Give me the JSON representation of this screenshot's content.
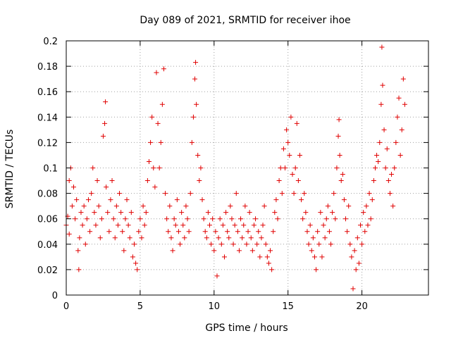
{
  "chart_data": {
    "type": "scatter",
    "title": "Day 089 of 2021, SRMTID for receiver ihoe",
    "xlabel": "GPS time / hours",
    "ylabel": "SRMTID / TECUs",
    "xlim": [
      0,
      24.5
    ],
    "ylim": [
      0,
      0.2
    ],
    "xticks": [
      0,
      5,
      10,
      15,
      20
    ],
    "xtick_labels": [
      "0",
      "5",
      "10",
      "15",
      "20"
    ],
    "yticks": [
      0,
      0.02,
      0.04,
      0.06,
      0.08,
      0.1,
      0.12,
      0.14,
      0.16,
      0.18,
      0.2
    ],
    "ytick_labels": [
      "0",
      "0.02",
      "0.04",
      "0.06",
      "0.08",
      "0.1",
      "0.12",
      "0.14",
      "0.16",
      "0.18",
      "0.2"
    ],
    "grid": true,
    "marker": "+",
    "color": "#e00000",
    "series": [
      {
        "name": "SRMTID",
        "points": [
          [
            0.0,
            0.055
          ],
          [
            0.1,
            0.062
          ],
          [
            0.2,
            0.048
          ],
          [
            0.2,
            0.09
          ],
          [
            0.3,
            0.1
          ],
          [
            0.4,
            0.07
          ],
          [
            0.5,
            0.085
          ],
          [
            0.6,
            0.06
          ],
          [
            0.7,
            0.075
          ],
          [
            0.8,
            0.035
          ],
          [
            0.85,
            0.02
          ],
          [
            0.9,
            0.045
          ],
          [
            1.0,
            0.065
          ],
          [
            1.1,
            0.055
          ],
          [
            1.2,
            0.07
          ],
          [
            1.3,
            0.04
          ],
          [
            1.4,
            0.06
          ],
          [
            1.5,
            0.075
          ],
          [
            1.6,
            0.05
          ],
          [
            1.7,
            0.08
          ],
          [
            1.8,
            0.1
          ],
          [
            1.9,
            0.065
          ],
          [
            2.0,
            0.055
          ],
          [
            2.1,
            0.09
          ],
          [
            2.2,
            0.07
          ],
          [
            2.3,
            0.045
          ],
          [
            2.4,
            0.06
          ],
          [
            2.5,
            0.125
          ],
          [
            2.6,
            0.135
          ],
          [
            2.65,
            0.152
          ],
          [
            2.7,
            0.085
          ],
          [
            2.8,
            0.065
          ],
          [
            2.9,
            0.05
          ],
          [
            3.0,
            0.075
          ],
          [
            3.1,
            0.09
          ],
          [
            3.2,
            0.06
          ],
          [
            3.3,
            0.045
          ],
          [
            3.4,
            0.07
          ],
          [
            3.5,
            0.055
          ],
          [
            3.6,
            0.08
          ],
          [
            3.7,
            0.065
          ],
          [
            3.8,
            0.05
          ],
          [
            3.9,
            0.035
          ],
          [
            4.0,
            0.06
          ],
          [
            4.1,
            0.075
          ],
          [
            4.2,
            0.055
          ],
          [
            4.3,
            0.045
          ],
          [
            4.4,
            0.065
          ],
          [
            4.5,
            0.03
          ],
          [
            4.6,
            0.04
          ],
          [
            4.7,
            0.025
          ],
          [
            4.8,
            0.02
          ],
          [
            4.9,
            0.05
          ],
          [
            5.0,
            0.06
          ],
          [
            5.1,
            0.045
          ],
          [
            5.2,
            0.07
          ],
          [
            5.3,
            0.055
          ],
          [
            5.4,
            0.065
          ],
          [
            5.5,
            0.09
          ],
          [
            5.6,
            0.105
          ],
          [
            5.7,
            0.12
          ],
          [
            5.8,
            0.14
          ],
          [
            5.9,
            0.1
          ],
          [
            6.0,
            0.085
          ],
          [
            6.1,
            0.175
          ],
          [
            6.2,
            0.135
          ],
          [
            6.3,
            0.1
          ],
          [
            6.4,
            0.12
          ],
          [
            6.5,
            0.15
          ],
          [
            6.6,
            0.178
          ],
          [
            6.7,
            0.08
          ],
          [
            6.8,
            0.06
          ],
          [
            6.9,
            0.05
          ],
          [
            7.0,
            0.07
          ],
          [
            7.1,
            0.045
          ],
          [
            7.2,
            0.035
          ],
          [
            7.3,
            0.06
          ],
          [
            7.4,
            0.055
          ],
          [
            7.5,
            0.075
          ],
          [
            7.6,
            0.05
          ],
          [
            7.7,
            0.04
          ],
          [
            7.8,
            0.065
          ],
          [
            7.9,
            0.055
          ],
          [
            8.0,
            0.045
          ],
          [
            8.1,
            0.07
          ],
          [
            8.2,
            0.06
          ],
          [
            8.3,
            0.05
          ],
          [
            8.4,
            0.08
          ],
          [
            8.5,
            0.12
          ],
          [
            8.6,
            0.14
          ],
          [
            8.7,
            0.17
          ],
          [
            8.75,
            0.183
          ],
          [
            8.8,
            0.15
          ],
          [
            8.9,
            0.11
          ],
          [
            9.0,
            0.09
          ],
          [
            9.1,
            0.1
          ],
          [
            9.2,
            0.075
          ],
          [
            9.3,
            0.06
          ],
          [
            9.4,
            0.05
          ],
          [
            9.5,
            0.045
          ],
          [
            9.6,
            0.065
          ],
          [
            9.7,
            0.055
          ],
          [
            9.8,
            0.04
          ],
          [
            9.9,
            0.06
          ],
          [
            10.0,
            0.035
          ],
          [
            10.1,
            0.05
          ],
          [
            10.2,
            0.015
          ],
          [
            10.3,
            0.045
          ],
          [
            10.4,
            0.06
          ],
          [
            10.5,
            0.04
          ],
          [
            10.6,
            0.055
          ],
          [
            10.7,
            0.03
          ],
          [
            10.8,
            0.065
          ],
          [
            10.9,
            0.05
          ],
          [
            11.0,
            0.045
          ],
          [
            11.1,
            0.07
          ],
          [
            11.2,
            0.06
          ],
          [
            11.3,
            0.04
          ],
          [
            11.4,
            0.055
          ],
          [
            11.5,
            0.08
          ],
          [
            11.6,
            0.05
          ],
          [
            11.7,
            0.035
          ],
          [
            11.8,
            0.06
          ],
          [
            11.9,
            0.045
          ],
          [
            12.0,
            0.055
          ],
          [
            12.1,
            0.07
          ],
          [
            12.2,
            0.04
          ],
          [
            12.3,
            0.05
          ],
          [
            12.4,
            0.065
          ],
          [
            12.5,
            0.045
          ],
          [
            12.6,
            0.035
          ],
          [
            12.7,
            0.055
          ],
          [
            12.8,
            0.06
          ],
          [
            12.9,
            0.04
          ],
          [
            13.0,
            0.05
          ],
          [
            13.1,
            0.03
          ],
          [
            13.2,
            0.045
          ],
          [
            13.3,
            0.055
          ],
          [
            13.4,
            0.07
          ],
          [
            13.5,
            0.04
          ],
          [
            13.6,
            0.03
          ],
          [
            13.7,
            0.025
          ],
          [
            13.8,
            0.035
          ],
          [
            13.9,
            0.02
          ],
          [
            14.0,
            0.05
          ],
          [
            14.1,
            0.065
          ],
          [
            14.2,
            0.075
          ],
          [
            14.3,
            0.06
          ],
          [
            14.4,
            0.09
          ],
          [
            14.5,
            0.1
          ],
          [
            14.6,
            0.08
          ],
          [
            14.7,
            0.115
          ],
          [
            14.8,
            0.1
          ],
          [
            14.9,
            0.13
          ],
          [
            15.0,
            0.12
          ],
          [
            15.1,
            0.11
          ],
          [
            15.2,
            0.14
          ],
          [
            15.3,
            0.095
          ],
          [
            15.4,
            0.08
          ],
          [
            15.5,
            0.1
          ],
          [
            15.6,
            0.135
          ],
          [
            15.7,
            0.09
          ],
          [
            15.8,
            0.11
          ],
          [
            15.9,
            0.075
          ],
          [
            16.0,
            0.06
          ],
          [
            16.1,
            0.08
          ],
          [
            16.2,
            0.065
          ],
          [
            16.3,
            0.05
          ],
          [
            16.4,
            0.04
          ],
          [
            16.5,
            0.055
          ],
          [
            16.6,
            0.035
          ],
          [
            16.7,
            0.045
          ],
          [
            16.8,
            0.03
          ],
          [
            16.9,
            0.02
          ],
          [
            17.0,
            0.05
          ],
          [
            17.1,
            0.04
          ],
          [
            17.2,
            0.065
          ],
          [
            17.3,
            0.03
          ],
          [
            17.4,
            0.055
          ],
          [
            17.5,
            0.045
          ],
          [
            17.6,
            0.06
          ],
          [
            17.7,
            0.07
          ],
          [
            17.8,
            0.05
          ],
          [
            17.9,
            0.04
          ],
          [
            18.0,
            0.065
          ],
          [
            18.1,
            0.08
          ],
          [
            18.2,
            0.06
          ],
          [
            18.3,
            0.1
          ],
          [
            18.4,
            0.125
          ],
          [
            18.45,
            0.138
          ],
          [
            18.5,
            0.11
          ],
          [
            18.6,
            0.09
          ],
          [
            18.7,
            0.095
          ],
          [
            18.8,
            0.075
          ],
          [
            18.9,
            0.06
          ],
          [
            19.0,
            0.05
          ],
          [
            19.1,
            0.07
          ],
          [
            19.2,
            0.04
          ],
          [
            19.3,
            0.03
          ],
          [
            19.4,
            0.005
          ],
          [
            19.5,
            0.035
          ],
          [
            19.6,
            0.02
          ],
          [
            19.7,
            0.045
          ],
          [
            19.8,
            0.025
          ],
          [
            19.9,
            0.055
          ],
          [
            20.0,
            0.04
          ],
          [
            20.1,
            0.065
          ],
          [
            20.2,
            0.05
          ],
          [
            20.3,
            0.07
          ],
          [
            20.4,
            0.055
          ],
          [
            20.5,
            0.08
          ],
          [
            20.6,
            0.06
          ],
          [
            20.7,
            0.075
          ],
          [
            20.8,
            0.09
          ],
          [
            20.9,
            0.1
          ],
          [
            21.0,
            0.11
          ],
          [
            21.1,
            0.105
          ],
          [
            21.2,
            0.12
          ],
          [
            21.3,
            0.15
          ],
          [
            21.35,
            0.195
          ],
          [
            21.4,
            0.165
          ],
          [
            21.5,
            0.13
          ],
          [
            21.6,
            0.1
          ],
          [
            21.7,
            0.115
          ],
          [
            21.8,
            0.09
          ],
          [
            21.9,
            0.08
          ],
          [
            22.0,
            0.095
          ],
          [
            22.1,
            0.07
          ],
          [
            22.2,
            0.1
          ],
          [
            22.3,
            0.12
          ],
          [
            22.4,
            0.14
          ],
          [
            22.5,
            0.155
          ],
          [
            22.6,
            0.11
          ],
          [
            22.7,
            0.13
          ],
          [
            22.8,
            0.17
          ],
          [
            22.9,
            0.15
          ]
        ]
      }
    ]
  }
}
